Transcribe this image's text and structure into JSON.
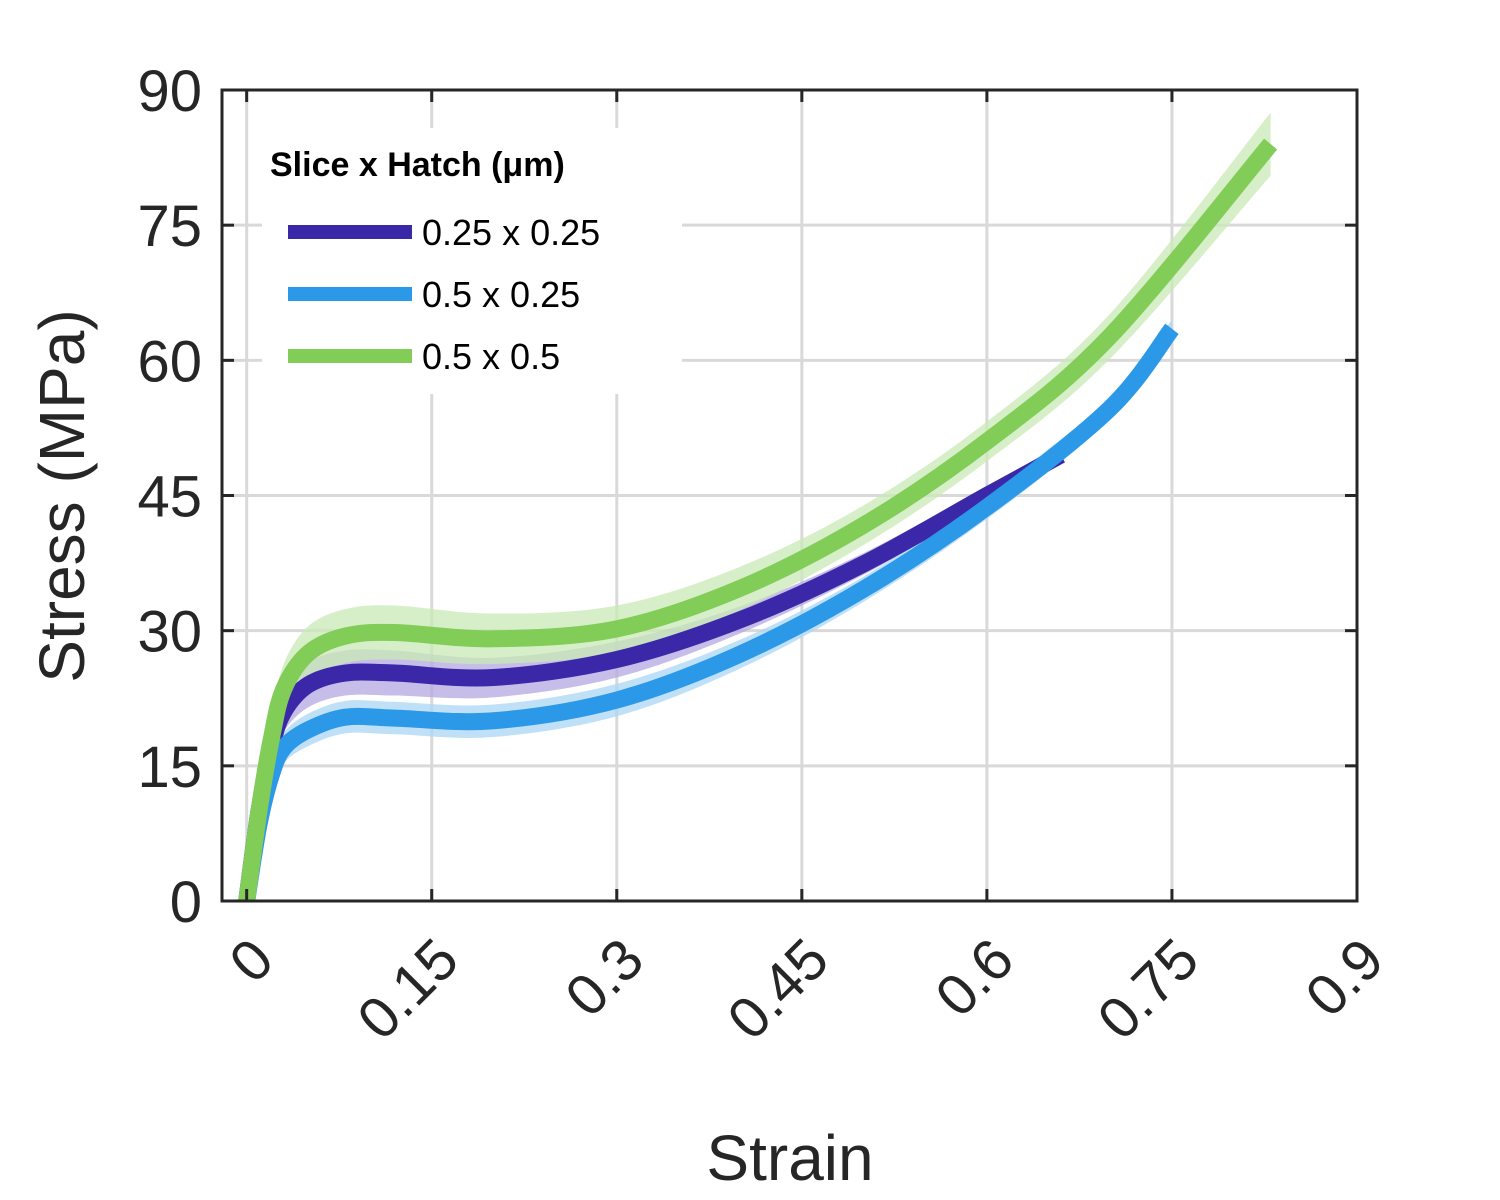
{
  "chart_data": {
    "type": "line",
    "xlabel": "Strain",
    "ylabel": "Stress (MPa)",
    "xlim": [
      -0.02,
      0.9
    ],
    "ylim": [
      0,
      90
    ],
    "xticks": [
      0,
      0.15,
      0.3,
      0.45,
      0.6,
      0.75,
      0.9
    ],
    "xtick_labels": [
      "0",
      "0.15",
      "0.3",
      "0.45",
      "0.6",
      "0.75",
      "0.9"
    ],
    "yticks": [
      0,
      15,
      30,
      45,
      60,
      75,
      90
    ],
    "ytick_labels": [
      "0",
      "15",
      "30",
      "45",
      "60",
      "75",
      "90"
    ],
    "grid": true,
    "legend": {
      "title": "Slice x Hatch (μm)",
      "position": "top-left"
    },
    "series": [
      {
        "name": "0.25 x 0.25",
        "color": "#3b28a8",
        "band_color": "#b3a8e0",
        "x": [
          0.0,
          0.01,
          0.02,
          0.03,
          0.05,
          0.08,
          0.12,
          0.2,
          0.3,
          0.4,
          0.5,
          0.6,
          0.66
        ],
        "y": [
          0,
          10,
          17,
          21,
          24,
          25.3,
          25.3,
          24.8,
          26.8,
          31.2,
          37.4,
          45,
          49.5
        ],
        "band": [
          0,
          1.2,
          1.8,
          2.2,
          2.5,
          2.5,
          2.5,
          2.2,
          2,
          1.5,
          1.2,
          1,
          1
        ]
      },
      {
        "name": "0.5 x 0.25",
        "color": "#2b98e8",
        "band_color": "#a9d5f4",
        "x": [
          0.0,
          0.01,
          0.02,
          0.03,
          0.05,
          0.08,
          0.12,
          0.2,
          0.3,
          0.4,
          0.5,
          0.6,
          0.7,
          0.75
        ],
        "y": [
          0,
          8.5,
          14,
          17,
          19,
          20.4,
          20.3,
          20,
          22.3,
          27.4,
          34.6,
          43.7,
          54.7,
          63.5
        ],
        "band": [
          0,
          1,
          1.5,
          1.7,
          1.8,
          1.8,
          1.8,
          1.8,
          1.8,
          1.6,
          1.4,
          1.3,
          1.2,
          1
        ]
      },
      {
        "name": "0.5 x 0.5",
        "color": "#82cc58",
        "band_color": "#c9e9b6",
        "x": [
          0.0,
          0.01,
          0.02,
          0.03,
          0.05,
          0.08,
          0.12,
          0.2,
          0.3,
          0.4,
          0.5,
          0.6,
          0.7,
          0.83
        ],
        "y": [
          0,
          10,
          18,
          23.5,
          27.5,
          29.4,
          29.8,
          29.1,
          30.2,
          34.7,
          41.7,
          51,
          62.7,
          84
        ],
        "band": [
          0,
          1.5,
          2.3,
          2.8,
          3,
          3,
          3,
          2.8,
          2.6,
          2.4,
          2.2,
          2.2,
          2.5,
          3.5
        ]
      }
    ]
  }
}
